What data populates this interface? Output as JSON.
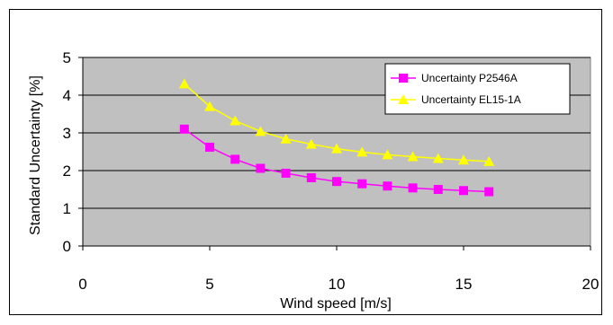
{
  "chart_data": {
    "type": "line",
    "title": "",
    "xlabel": "Wind speed [m/s]",
    "ylabel": "Standard Uncertainty [%]",
    "xlim": [
      0,
      20
    ],
    "ylim": [
      0,
      5
    ],
    "xticks": [
      0,
      5,
      10,
      15,
      20
    ],
    "yticks": [
      0,
      1,
      2,
      3,
      4,
      5
    ],
    "grid": "horizontal",
    "plot_background": "#c0c0c0",
    "legend_position": "top-right",
    "x": [
      4,
      5,
      6,
      7,
      8,
      9,
      10,
      11,
      12,
      13,
      14,
      15,
      16
    ],
    "series": [
      {
        "name": "Uncertainty  P2546A",
        "color": "#ff00ff",
        "marker": "square",
        "values": [
          3.1,
          2.62,
          2.3,
          2.06,
          1.93,
          1.81,
          1.71,
          1.65,
          1.59,
          1.54,
          1.5,
          1.47,
          1.44
        ]
      },
      {
        "name": "Uncertainty  EL15-1A",
        "color": "#ffff00",
        "marker": "triangle",
        "values": [
          4.3,
          3.7,
          3.32,
          3.04,
          2.84,
          2.7,
          2.58,
          2.49,
          2.42,
          2.37,
          2.32,
          2.28,
          2.24
        ]
      }
    ]
  }
}
